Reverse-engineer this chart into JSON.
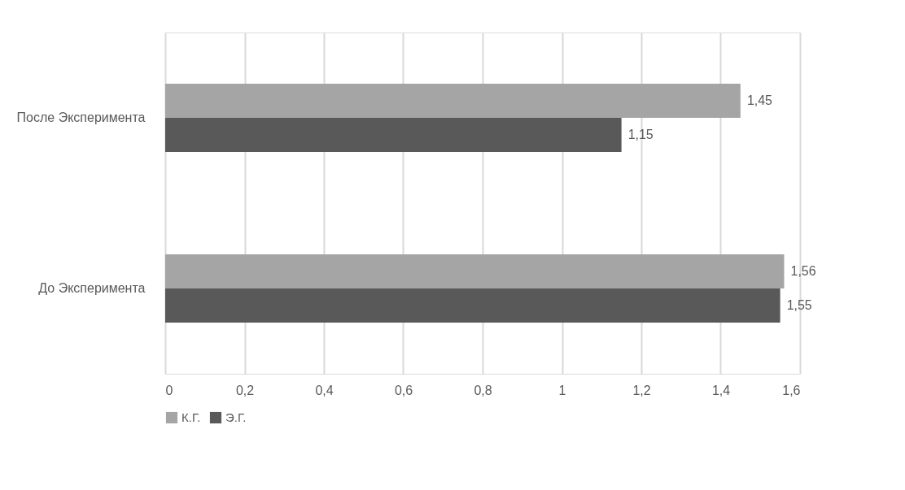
{
  "chart_data": {
    "type": "bar",
    "orientation": "horizontal",
    "categories": [
      "После Эксперимента",
      "До Эксперимента"
    ],
    "series": [
      {
        "name": "К.Г.",
        "color": "#a5a5a5",
        "values": [
          1.45,
          1.56
        ],
        "value_labels": [
          "1,45",
          "1,56"
        ]
      },
      {
        "name": "Э.Г.",
        "color": "#595959",
        "values": [
          1.15,
          1.55
        ],
        "value_labels": [
          "1,15",
          "1,55"
        ]
      }
    ],
    "xlim": [
      0,
      1.6
    ],
    "xticks": [
      0,
      {
        "value": 0.2,
        "label": "0,2"
      },
      {
        "value": 0.4,
        "label": "0,4"
      },
      {
        "value": 0.6,
        "label": "0,6"
      },
      {
        "value": 0.8,
        "label": "0,8"
      },
      1,
      {
        "value": 1.2,
        "label": "1,2"
      },
      {
        "value": 1.4,
        "label": "1,4"
      },
      {
        "value": 1.6,
        "label": "1,6"
      }
    ],
    "grid": "x",
    "legend": "bottom"
  }
}
